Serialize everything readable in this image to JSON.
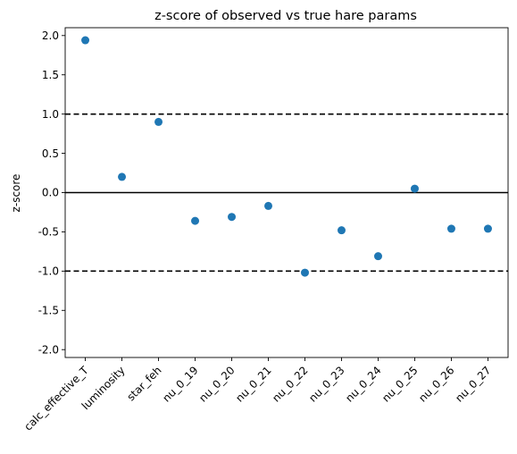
{
  "chart_data": {
    "type": "scatter",
    "title": "z-score of observed vs true hare params",
    "xlabel": "",
    "ylabel": "z-score",
    "ylim": [
      -2.1,
      2.1
    ],
    "yticks": [
      "2.0",
      "1.5",
      "1.0",
      "0.5",
      "0.0",
      "-0.5",
      "-1.0",
      "-1.5",
      "-2.0"
    ],
    "ytick_values": [
      2.0,
      1.5,
      1.0,
      0.5,
      0.0,
      -0.5,
      -1.0,
      -1.5,
      -2.0
    ],
    "categories": [
      "calc_effective_T",
      "luminosity",
      "star_feh",
      "nu_0_19",
      "nu_0_20",
      "nu_0_21",
      "nu_0_22",
      "nu_0_23",
      "nu_0_24",
      "nu_0_25",
      "nu_0_26",
      "nu_0_27"
    ],
    "values": [
      1.94,
      0.2,
      0.9,
      -0.36,
      -0.31,
      -0.17,
      -1.02,
      -0.48,
      -0.81,
      0.05,
      -0.46,
      -0.46
    ],
    "reference_lines": [
      {
        "y": 1.0,
        "style": "dashed"
      },
      {
        "y": 0.0,
        "style": "solid"
      },
      {
        "y": -1.0,
        "style": "dashed"
      }
    ],
    "marker_color": "#1f77b4",
    "grid": false,
    "legend": "none"
  }
}
